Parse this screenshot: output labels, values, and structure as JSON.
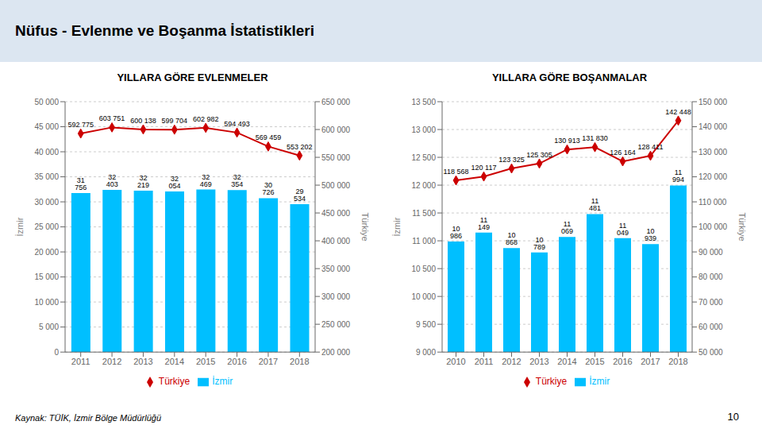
{
  "title": "Nüfus -  Evlenme ve Boşanma İstatistikleri",
  "annotations": [
    "Kaynak: TÜİK, İzmir Bölge Müdürlüğü",
    "10"
  ],
  "chart_data": [
    {
      "type": "bar",
      "title": "YILLARA GÖRE EVLENMELER",
      "categories": [
        "2011",
        "2012",
        "2013",
        "2014",
        "2015",
        "2016",
        "2017",
        "2018"
      ],
      "series": [
        {
          "name": "İzmir",
          "type": "bar",
          "color": "#00bfff",
          "values": [
            31756,
            32403,
            32219,
            32054,
            32469,
            32354,
            30726,
            29534
          ],
          "value_labels": [
            "31 756",
            "32 403",
            "32 219",
            "32 054",
            "32 469",
            "32 354",
            "30 726",
            "29 534"
          ]
        },
        {
          "name": "Türkiye",
          "type": "line",
          "axis": "y2",
          "color": "#cc0000",
          "marker": "diamond",
          "values": [
            592775,
            603751,
            600138,
            599704,
            602982,
            594493,
            569459,
            553202
          ],
          "value_labels": [
            "592 775",
            "603 751",
            "600 138",
            "599 704",
            "602 982",
            "594 493",
            "569 459",
            "553 202"
          ]
        }
      ],
      "y_label": "İzmir",
      "y2_label": "Türkiye",
      "ylim": [
        0,
        50000
      ],
      "yticks": [
        0,
        {
          "value": 5000,
          "label": "5 000"
        },
        {
          "value": 10000,
          "label": "10 000"
        },
        {
          "value": 15000,
          "label": "15 000"
        },
        {
          "value": 20000,
          "label": "20 000"
        },
        {
          "value": 25000,
          "label": "25 000"
        },
        {
          "value": 30000,
          "label": "30 000"
        },
        {
          "value": 35000,
          "label": "35 000"
        },
        {
          "value": 40000,
          "label": "40 000"
        },
        {
          "value": 45000,
          "label": "45 000"
        },
        {
          "value": 50000,
          "label": "50 000"
        }
      ],
      "y2lim": [
        200000,
        650000
      ],
      "y2ticks": [
        {
          "value": 200000,
          "label": "200 000"
        },
        {
          "value": 250000,
          "label": "250 000"
        },
        {
          "value": 300000,
          "label": "300 000"
        },
        {
          "value": 350000,
          "label": "350 000"
        },
        {
          "value": 400000,
          "label": "400 000"
        },
        {
          "value": 450000,
          "label": "450 000"
        },
        {
          "value": 500000,
          "label": "500 000"
        },
        {
          "value": 550000,
          "label": "550 000"
        },
        {
          "value": 600000,
          "label": "600 000"
        },
        {
          "value": 650000,
          "label": "650 000"
        }
      ],
      "grid": true,
      "legend": "bottom",
      "data_labels": true
    },
    {
      "type": "bar",
      "title": "YILLARA GÖRE BOŞANMALAR",
      "categories": [
        "2010",
        "2011",
        "2012",
        "2013",
        "2014",
        "2015",
        "2016",
        "2017",
        "2018"
      ],
      "series": [
        {
          "name": "İzmir",
          "type": "bar",
          "color": "#00bfff",
          "values": [
            10986,
            11149,
            10868,
            10789,
            11069,
            11481,
            11049,
            10939,
            11994
          ],
          "value_labels": [
            "10 986",
            "11 149",
            "10 868",
            "10 789",
            "11 069",
            "11 481",
            "11 049",
            "10 939",
            "11 994"
          ]
        },
        {
          "name": "Türkiye",
          "type": "line",
          "axis": "y2",
          "color": "#cc0000",
          "marker": "diamond",
          "values": [
            118568,
            120117,
            123325,
            125305,
            130913,
            131830,
            126164,
            128411,
            142448
          ],
          "value_labels": [
            "118 568",
            "120 117",
            "123 325",
            "125 305",
            "130 913",
            "131 830",
            "126 164",
            "128 411",
            "142 448"
          ]
        }
      ],
      "y_label": "İzmir",
      "y2_label": "Türkiye",
      "ylim": [
        9000,
        13500
      ],
      "yticks": [
        {
          "value": 9000,
          "label": "9 000"
        },
        {
          "value": 9500,
          "label": "9 500"
        },
        {
          "value": 10000,
          "label": "10 000"
        },
        {
          "value": 10500,
          "label": "10 500"
        },
        {
          "value": 11000,
          "label": "11 000"
        },
        {
          "value": 11500,
          "label": "11 500"
        },
        {
          "value": 12000,
          "label": "12 000"
        },
        {
          "value": 12500,
          "label": "12 500"
        },
        {
          "value": 13000,
          "label": "13 000"
        },
        {
          "value": 13500,
          "label": "13 500"
        }
      ],
      "y2lim": [
        50000,
        150000
      ],
      "y2ticks": [
        {
          "value": 50000,
          "label": "50 000"
        },
        {
          "value": 60000,
          "label": "60 000"
        },
        {
          "value": 70000,
          "label": "70 000"
        },
        {
          "value": 80000,
          "label": "80 000"
        },
        {
          "value": 90000,
          "label": "90 000"
        },
        {
          "value": 100000,
          "label": "100 000"
        },
        {
          "value": 110000,
          "label": "110 000"
        },
        {
          "value": 120000,
          "label": "120 000"
        },
        {
          "value": 130000,
          "label": "130 000"
        },
        {
          "value": 140000,
          "label": "140 000"
        },
        {
          "value": 150000,
          "label": "150 000"
        }
      ],
      "grid": true,
      "legend": "bottom",
      "data_labels": true
    }
  ]
}
